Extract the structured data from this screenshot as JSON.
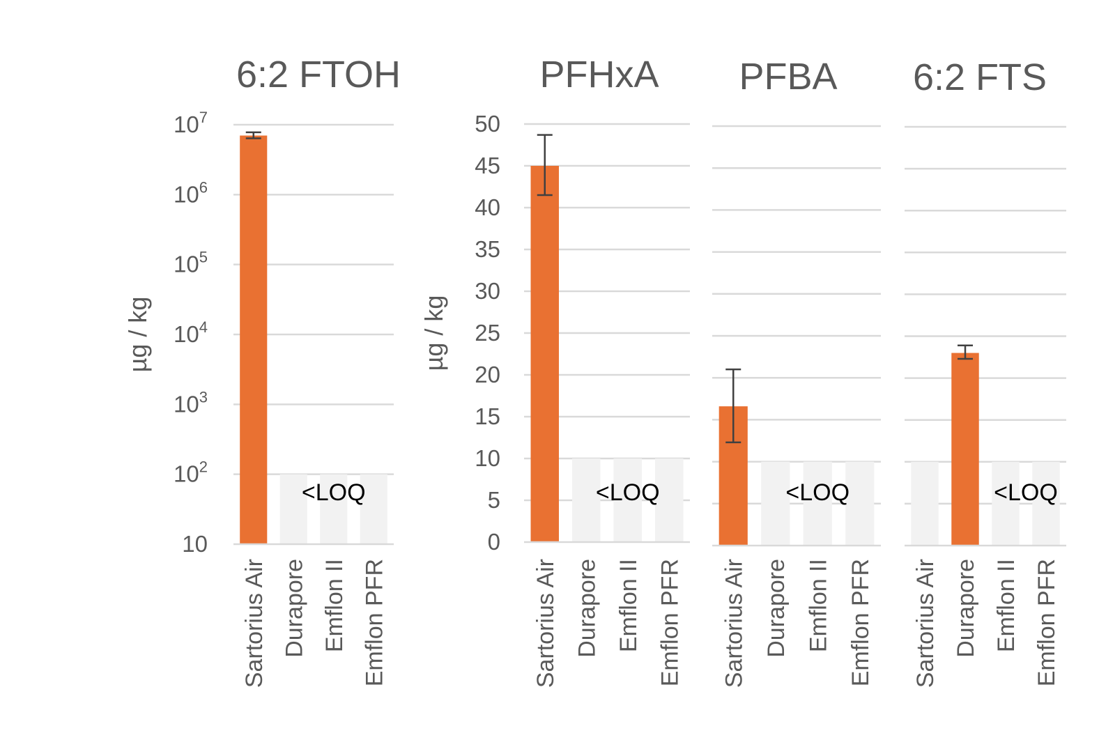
{
  "colors": {
    "bar": "#E97132",
    "loq_bar": "#F2F2F2",
    "grid": "#D9D9D9",
    "axis": "#D9D9D9",
    "error": "#404040",
    "text": "#595959"
  },
  "chart_data": [
    {
      "type": "bar",
      "title": "6:2 FTOH",
      "ylabel": "µg / kg",
      "yscale": "log",
      "ylim": [
        10,
        10000000
      ],
      "yticks": [
        {
          "base": "10",
          "exp": ""
        },
        {
          "base": "10",
          "exp": "2"
        },
        {
          "base": "10",
          "exp": "3"
        },
        {
          "base": "10",
          "exp": "4"
        },
        {
          "base": "10",
          "exp": "5"
        },
        {
          "base": "10",
          "exp": "6"
        },
        {
          "base": "10",
          "exp": "7"
        }
      ],
      "categories": [
        "Sartorius Air",
        "Durapore",
        "Emflon II",
        "Emflon PFR"
      ],
      "values": [
        7000000,
        null,
        null,
        null
      ],
      "error_low": [
        6400000,
        null,
        null,
        null
      ],
      "error_high": [
        7800000,
        null,
        null,
        null
      ],
      "below_loq": [
        false,
        true,
        true,
        true
      ],
      "loq_label": "<LOQ",
      "loq_level": 100
    },
    {
      "type": "bar",
      "title": "PFHxA",
      "ylabel": "µg / kg",
      "yscale": "linear",
      "ylim": [
        0,
        50
      ],
      "yticks": [
        "0",
        "5",
        "10",
        "15",
        "20",
        "25",
        "30",
        "35",
        "40",
        "45",
        "50"
      ],
      "categories": [
        "Sartorius Air",
        "Durapore",
        "Emflon II",
        "Emflon PFR"
      ],
      "values": [
        45,
        null,
        null,
        null
      ],
      "error_low": [
        41.5,
        null,
        null,
        null
      ],
      "error_high": [
        48.7,
        null,
        null,
        null
      ],
      "below_loq": [
        false,
        true,
        true,
        true
      ],
      "loq_label": "<LOQ",
      "loq_level": 10
    },
    {
      "type": "bar",
      "title": "PFBA",
      "yscale": "linear",
      "ylim": [
        0,
        50
      ],
      "categories": [
        "Sartorius Air",
        "Durapore",
        "Emflon II",
        "Emflon PFR"
      ],
      "values": [
        16.6,
        null,
        null,
        null
      ],
      "error_low": [
        12.3,
        null,
        null,
        null
      ],
      "error_high": [
        21,
        null,
        null,
        null
      ],
      "below_loq": [
        false,
        true,
        true,
        true
      ],
      "loq_label": "<LOQ",
      "loq_level": 10
    },
    {
      "type": "bar",
      "title": "6:2 FTS",
      "yscale": "linear",
      "ylim": [
        0,
        50
      ],
      "categories": [
        "Sartorius Air",
        "Durapore",
        "Emflon II",
        "Emflon PFR"
      ],
      "values": [
        null,
        23,
        null,
        null
      ],
      "error_low": [
        null,
        22.3,
        null,
        null
      ],
      "error_high": [
        null,
        23.9,
        null,
        null
      ],
      "below_loq": [
        true,
        false,
        true,
        true
      ],
      "loq_label": "<LOQ",
      "loq_level": 10
    }
  ]
}
